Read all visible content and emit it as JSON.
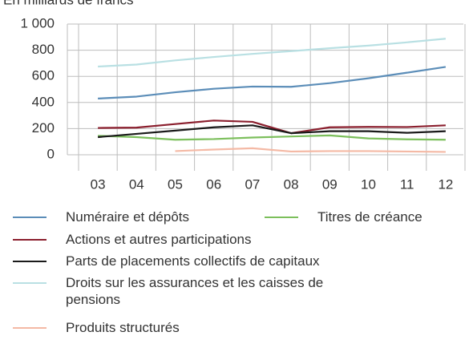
{
  "chart_data": {
    "type": "line",
    "y_label": "En milliards de francs",
    "categories": [
      "03",
      "04",
      "05",
      "06",
      "07",
      "08",
      "09",
      "10",
      "11",
      "12"
    ],
    "ylim": [
      0,
      1000
    ],
    "yticks": [
      0,
      200,
      400,
      600,
      800,
      {
        "value": 1000,
        "label": "1 000"
      }
    ],
    "grid": true,
    "series": [
      {
        "name": "Numéraire et dépôts",
        "color": "#5b8db8",
        "values": [
          430,
          445,
          478,
          505,
          522,
          520,
          548,
          585,
          628,
          672
        ]
      },
      {
        "name": "Titres de créance",
        "color": "#7cbf5c",
        "values": [
          145,
          135,
          115,
          120,
          132,
          140,
          148,
          125,
          118,
          115
        ]
      },
      {
        "name": "Actions et autres participations",
        "color": "#8b1f2e",
        "values": [
          205,
          208,
          235,
          262,
          252,
          165,
          210,
          213,
          212,
          225
        ]
      },
      {
        "name": "Parts de placements collectifs de capitaux",
        "color": "#1a1a1a",
        "values": [
          135,
          160,
          185,
          210,
          225,
          165,
          180,
          180,
          168,
          180
        ]
      },
      {
        "name": "Droits sur les assurances et les caisses de pensions",
        "color": "#b9e0e3",
        "values": [
          675,
          690,
          722,
          748,
          772,
          793,
          815,
          835,
          860,
          888
        ]
      },
      {
        "name": "Produits structurés",
        "color": "#f4b9a5",
        "values": [
          null,
          null,
          28,
          40,
          50,
          25,
          28,
          28,
          25,
          22
        ]
      }
    ]
  }
}
